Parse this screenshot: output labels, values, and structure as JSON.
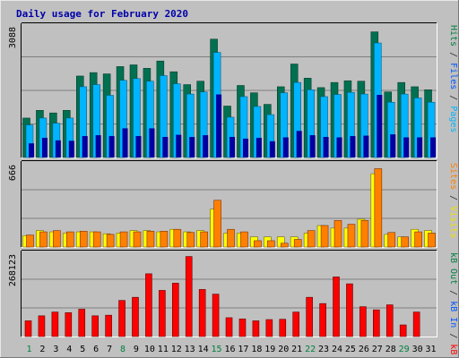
{
  "chart_data": {
    "type": "bar",
    "title": "Daily usage for February 2020",
    "categories": [
      "1",
      "2",
      "3",
      "4",
      "5",
      "6",
      "7",
      "8",
      "9",
      "10",
      "11",
      "12",
      "13",
      "14",
      "15",
      "16",
      "17",
      "18",
      "19",
      "20",
      "21",
      "22",
      "23",
      "24",
      "25",
      "26",
      "27",
      "28",
      "29",
      "30",
      "31"
    ],
    "weekend_days": [
      "1",
      "8",
      "15",
      "22",
      "29"
    ],
    "panels": [
      {
        "id": "top",
        "max_label": "3088",
        "ylim": [
          0,
          3088
        ],
        "side_labels": [
          {
            "text": "Pages",
            "color": "#00b4ff"
          },
          {
            "text": " / ",
            "color": "#2a2a2a"
          },
          {
            "text": "Files",
            "color": "#0055ff"
          },
          {
            "text": " / ",
            "color": "#2a2a2a"
          },
          {
            "text": "Hits",
            "color": "#008040"
          }
        ],
        "series": [
          {
            "name": "Hits",
            "color": "#007050",
            "values": [
              920,
              1100,
              1040,
              1100,
              1900,
              1980,
              1950,
              2120,
              2160,
              2080,
              2250,
              2000,
              1700,
              1780,
              2760,
              1200,
              1680,
              1510,
              1240,
              1650,
              2180,
              1850,
              1630,
              1750,
              1790,
              1780,
              2930,
              1530,
              1750,
              1650,
              1580
            ]
          },
          {
            "name": "Files",
            "color": "#00b4ff",
            "values": [
              760,
              920,
              800,
              920,
              1650,
              1700,
              1450,
              1800,
              1840,
              1780,
              1910,
              1720,
              1480,
              1530,
              2450,
              940,
              1420,
              1190,
              1000,
              1510,
              1750,
              1580,
              1420,
              1470,
              1520,
              1480,
              2670,
              1290,
              1480,
              1390,
              1290
            ]
          },
          {
            "name": "Pages",
            "color": "#0000a0",
            "values": [
              330,
              460,
              400,
              390,
              500,
              520,
              500,
              680,
              500,
              680,
              480,
              530,
              480,
              520,
              1470,
              480,
              440,
              460,
              380,
              470,
              620,
              520,
              480,
              470,
              500,
              510,
              1460,
              540,
              470,
              470,
              470
            ]
          }
        ]
      },
      {
        "id": "middle",
        "max_label": "666",
        "ylim": [
          0,
          666
        ],
        "side_labels": [
          {
            "text": "Visits",
            "color": "#f0e000"
          },
          {
            "text": " / ",
            "color": "#2a2a2a"
          },
          {
            "text": "Sites",
            "color": "#ff8000"
          }
        ],
        "series": [
          {
            "name": "Visits",
            "color": "#ffff00",
            "values": [
              90,
              130,
              120,
              110,
              120,
              120,
              105,
              110,
              130,
              130,
              120,
              140,
              120,
              130,
              300,
              110,
              110,
              80,
              80,
              80,
              80,
              110,
              170,
              150,
              150,
              220,
              580,
              100,
              80,
              140,
              130
            ]
          },
          {
            "name": "Sites",
            "color": "#ff8000",
            "values": [
              95,
              120,
              130,
              120,
              125,
              120,
              100,
              120,
              120,
              125,
              125,
              140,
              115,
              120,
              370,
              140,
              120,
              50,
              50,
              30,
              60,
              130,
              170,
              210,
              180,
              210,
              620,
              115,
              80,
              120,
              110
            ]
          }
        ]
      },
      {
        "id": "bottom",
        "max_label": "268123",
        "ylim": [
          0,
          268123
        ],
        "side_labels": [
          {
            "text": "kB F",
            "color": "#ff0000"
          },
          {
            "text": " / ",
            "color": "#2a2a2a"
          },
          {
            "text": "kB In",
            "color": "#0055ff"
          },
          {
            "text": " / ",
            "color": "#2a2a2a"
          },
          {
            "text": "kB Out",
            "color": "#008040"
          }
        ],
        "series": [
          {
            "name": "kB F",
            "color": "#ff0000",
            "values": [
              50000,
              66000,
              78000,
              76000,
              87000,
              66000,
              68000,
              115000,
              125000,
              200000,
              147000,
              170000,
              255000,
              150000,
              135000,
              60000,
              56000,
              50000,
              54000,
              55000,
              78000,
              125000,
              105000,
              190000,
              168000,
              95000,
              85000,
              101000,
              37000,
              78000,
              0
            ]
          }
        ]
      }
    ]
  }
}
